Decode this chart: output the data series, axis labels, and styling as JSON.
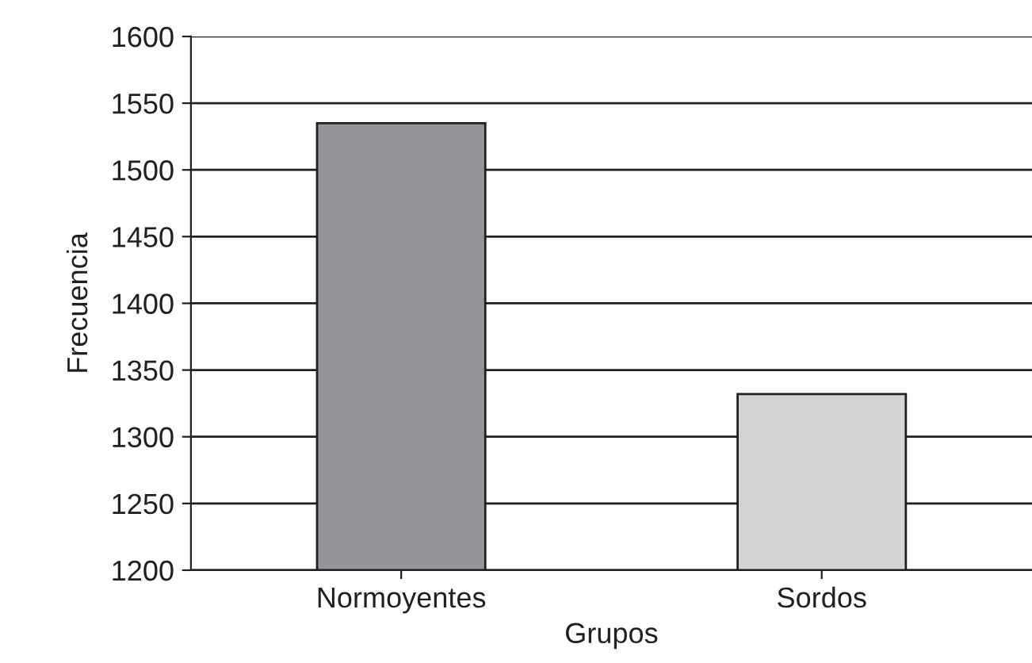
{
  "chart_data": {
    "type": "bar",
    "xlabel": "Grupos",
    "ylabel": "Frecuencia",
    "categories": [
      "Normoyentes",
      "Sordos"
    ],
    "values": [
      1535,
      1332
    ],
    "colors": [
      "#939598",
      "#d1d3d4"
    ],
    "ylim": [
      1200,
      1600
    ],
    "yticks": [
      1200,
      1250,
      1300,
      1350,
      1400,
      1450,
      1500,
      1550,
      1600
    ],
    "grid": "y",
    "legend": false
  }
}
